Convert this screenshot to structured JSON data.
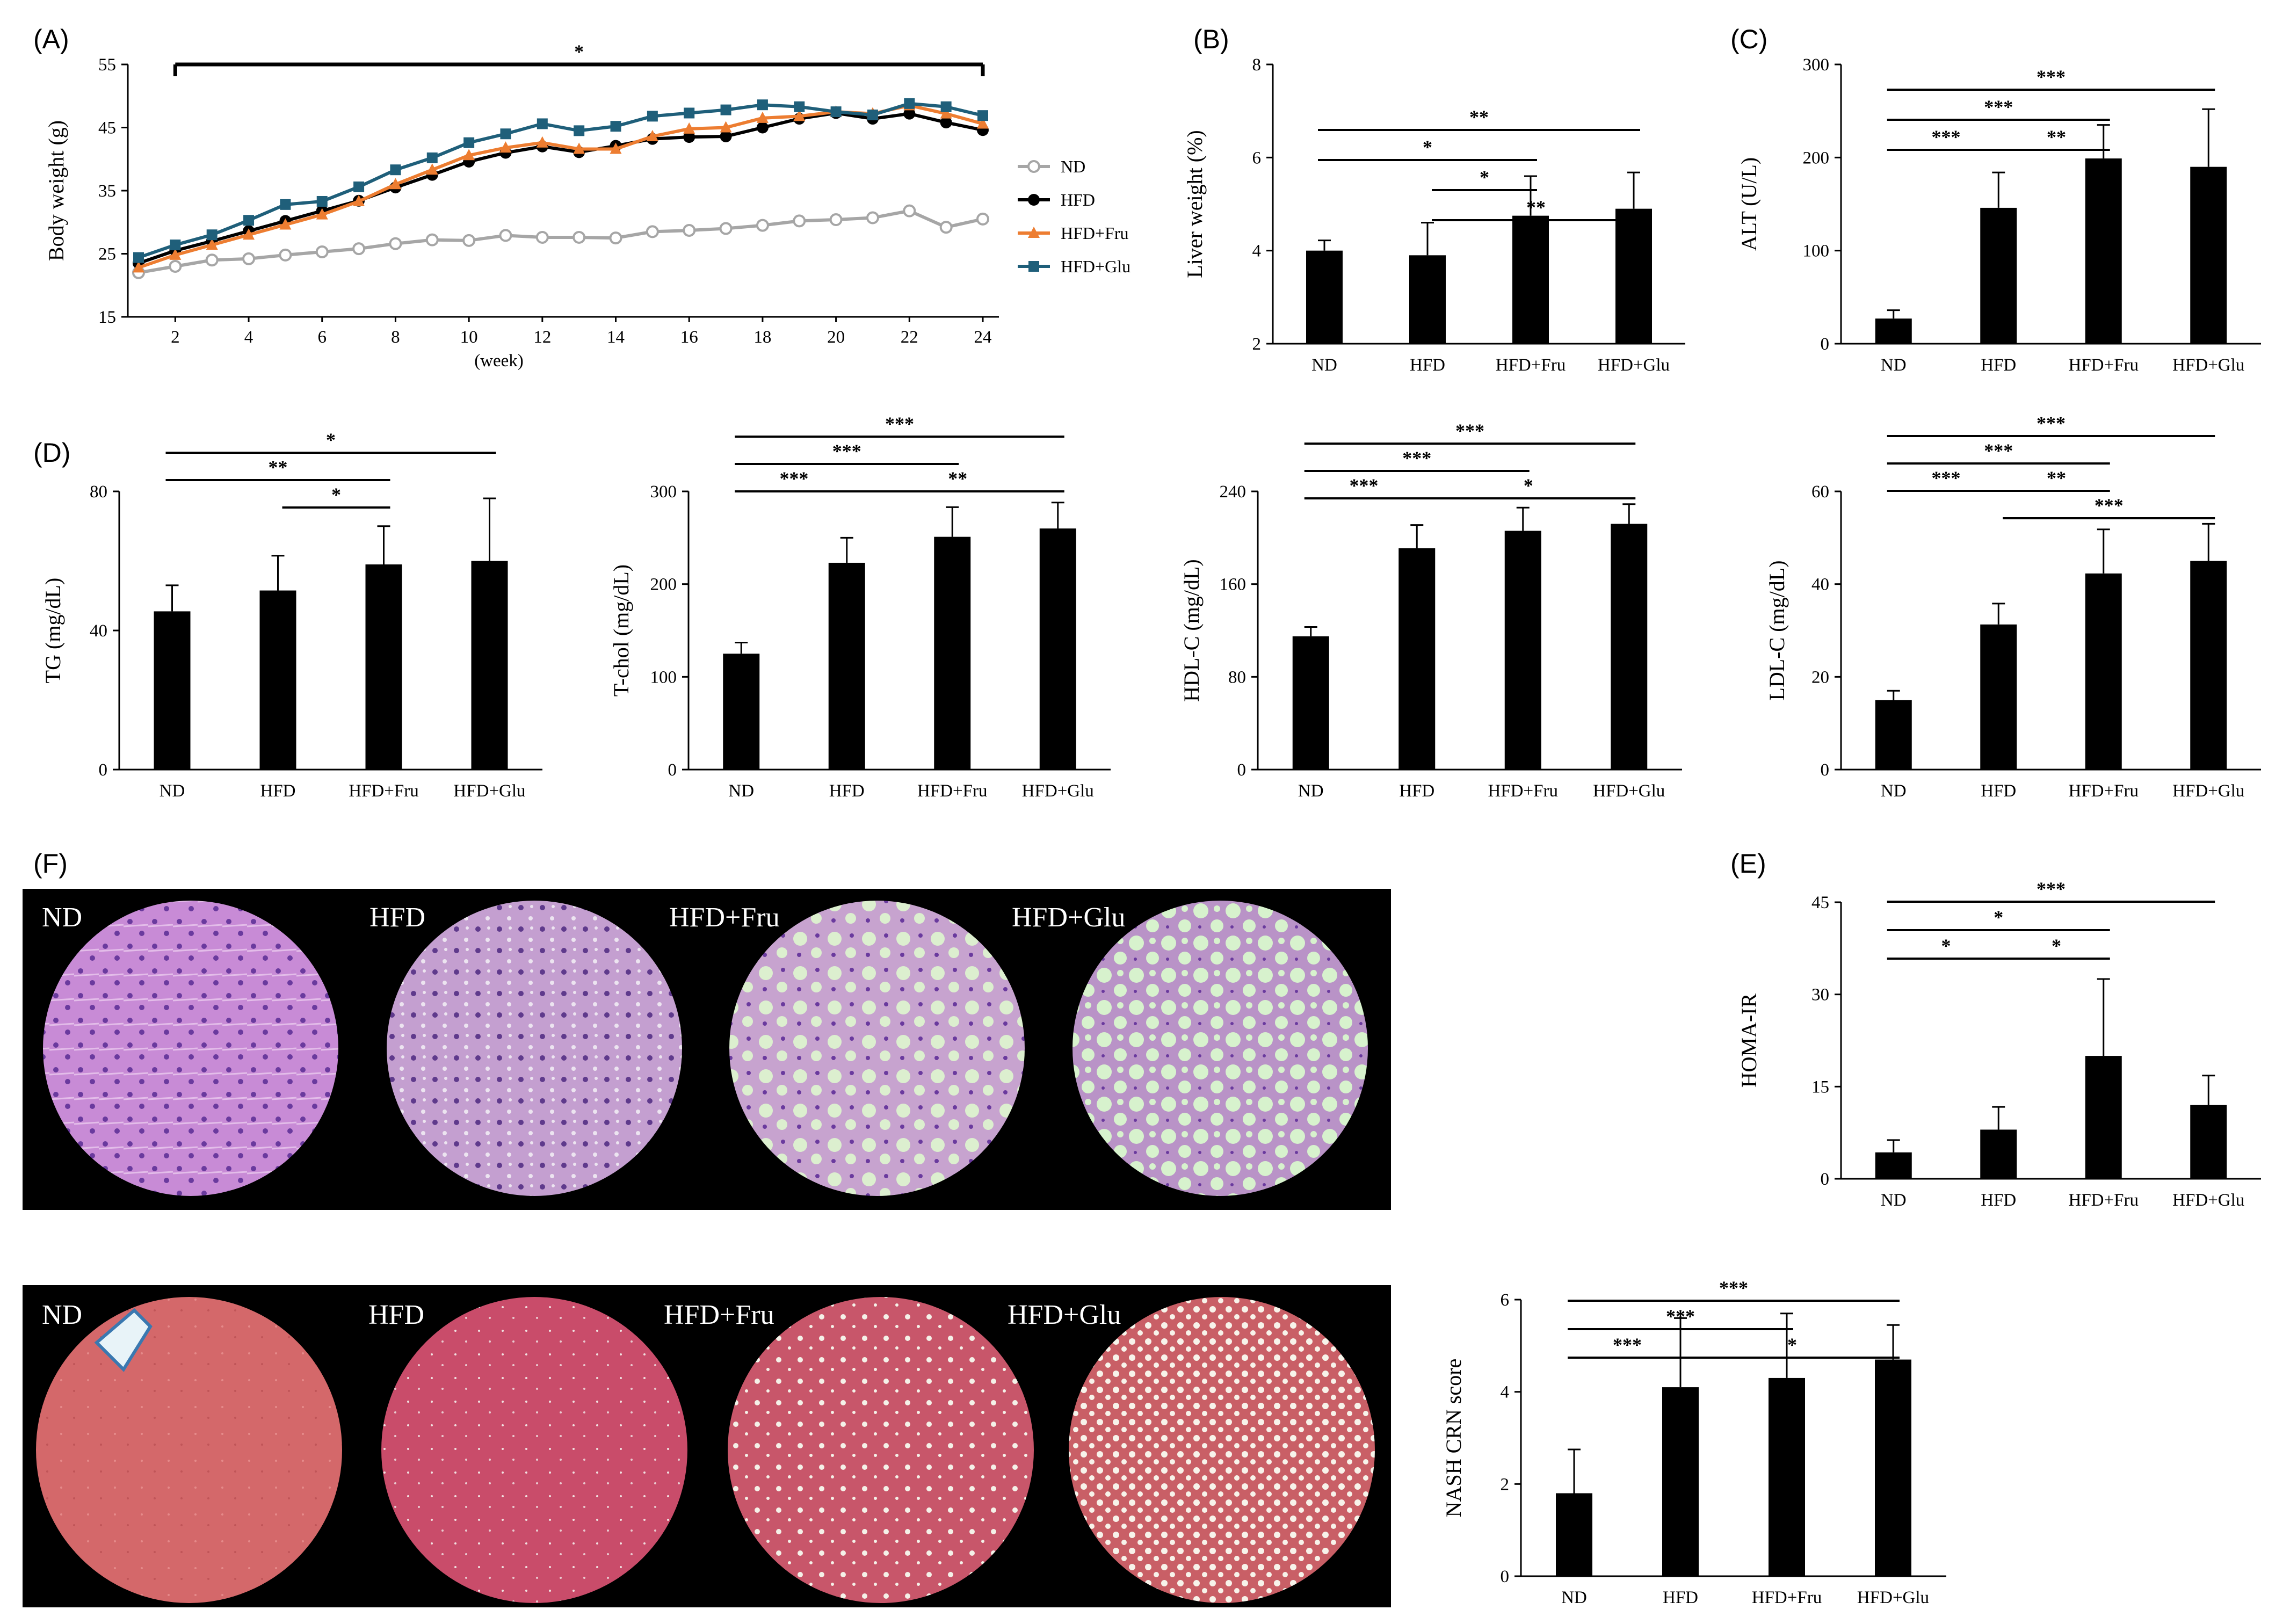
{
  "figure": {
    "labels": {
      "A": "(A)",
      "B": "(B)",
      "C": "(C)",
      "D": "(D)",
      "E": "(E)",
      "F": "(F)"
    }
  },
  "histology": {
    "he_labels": [
      "ND",
      "HFD",
      "HFD+Fru",
      "HFD+Glu"
    ],
    "trichrome_labels": [
      "ND",
      "HFD",
      "HFD+Fru",
      "HFD+Glu"
    ]
  },
  "chart_data": [
    {
      "id": "A",
      "type": "line",
      "title": "",
      "xlabel": "(week)",
      "ylabel": "Body weight (g)",
      "xlim": [
        1,
        24
      ],
      "ylim": [
        15,
        55
      ],
      "xticks": [
        2,
        4,
        6,
        8,
        10,
        12,
        14,
        16,
        18,
        20,
        22,
        24
      ],
      "yticks": [
        15,
        25,
        35,
        45,
        55
      ],
      "x": [
        1,
        2,
        3,
        4,
        5,
        6,
        7,
        8,
        9,
        10,
        11,
        12,
        13,
        14,
        15,
        16,
        17,
        18,
        19,
        20,
        21,
        22,
        23,
        24
      ],
      "legend": [
        "ND",
        "HFD",
        "HFD+Fru",
        "HFD+Glu"
      ],
      "sig_label": "*",
      "series": [
        {
          "name": "ND",
          "color": "#a6a6a6",
          "marker": "open-circle",
          "values": [
            22,
            23,
            24,
            24.2,
            24.8,
            25.3,
            25.8,
            26.6,
            27.2,
            27.1,
            27.9,
            27.6,
            27.6,
            27.5,
            28.5,
            28.7,
            29,
            29.5,
            30.2,
            30.4,
            30.7,
            31.8,
            29.2,
            30.5
          ]
        },
        {
          "name": "HFD",
          "color": "#000000",
          "marker": "circle",
          "values": [
            23.5,
            25.5,
            27,
            28.6,
            30.2,
            31.8,
            33.4,
            35.5,
            37.5,
            39.6,
            41,
            42,
            41.1,
            42.1,
            43.2,
            43.5,
            43.6,
            45,
            46.4,
            47.3,
            46.4,
            47.2,
            45.8,
            44.6
          ]
        },
        {
          "name": "HFD+Fru",
          "color": "#ed7d31",
          "marker": "triangle",
          "values": [
            22.8,
            24.8,
            26.4,
            28,
            29.6,
            31.2,
            33.3,
            36,
            38.3,
            40.6,
            41.8,
            42.6,
            41.6,
            41.6,
            43.6,
            44.8,
            45,
            46.5,
            46.8,
            47.5,
            47.2,
            48.5,
            47.2,
            45.6
          ]
        },
        {
          "name": "HFD+Glu",
          "color": "#1f5f7a",
          "marker": "square",
          "values": [
            24.4,
            26.4,
            28,
            30.3,
            32.8,
            33.3,
            35.6,
            38.3,
            40.2,
            42.6,
            44,
            45.6,
            44.5,
            45.2,
            46.8,
            47.3,
            47.8,
            48.6,
            48.3,
            47.5,
            47,
            48.8,
            48.3,
            46.9
          ]
        }
      ]
    },
    {
      "id": "B",
      "type": "bar",
      "ylabel": "Liver weight (%)",
      "categories": [
        "ND",
        "HFD",
        "HFD+Fru",
        "HFD+Glu"
      ],
      "values": [
        4.0,
        3.9,
        4.75,
        4.9
      ],
      "errors": [
        0.22,
        0.7,
        0.85,
        0.78
      ],
      "ylim": [
        2,
        8
      ],
      "yticks": [
        2,
        4,
        6,
        8
      ],
      "significance": [
        {
          "from": 0,
          "to": 3,
          "label": "**"
        },
        {
          "from": 0,
          "to": 2,
          "label": "*"
        },
        {
          "from": 1,
          "to": 2,
          "label": "*"
        },
        {
          "from": 1,
          "to": 3,
          "label": "**"
        }
      ]
    },
    {
      "id": "C",
      "type": "bar",
      "ylabel": "ALT (U/L)",
      "categories": [
        "ND",
        "HFD",
        "HFD+Fru",
        "HFD+Glu"
      ],
      "values": [
        27,
        146,
        199,
        190
      ],
      "errors": [
        9,
        38,
        36,
        62
      ],
      "ylim": [
        0,
        300
      ],
      "yticks": [
        0,
        100,
        200,
        300
      ],
      "significance": [
        {
          "from": 0,
          "to": 3,
          "label": "***"
        },
        {
          "from": 0,
          "to": 2,
          "label": "***"
        },
        {
          "from": 0,
          "to": 1,
          "label": "***"
        },
        {
          "from": 1,
          "to": 2,
          "label": "**"
        }
      ]
    },
    {
      "id": "D1",
      "type": "bar",
      "ylabel": "TG (mg/dL)",
      "categories": [
        "ND",
        "HFD",
        "HFD+Fru",
        "HFD+Glu"
      ],
      "values": [
        45.5,
        51.5,
        59,
        60
      ],
      "errors": [
        7.5,
        10,
        11,
        18
      ],
      "ylim": [
        0,
        80
      ],
      "yticks": [
        0,
        40,
        80
      ],
      "significance": [
        {
          "from": 0,
          "to": 3,
          "label": "*"
        },
        {
          "from": 0,
          "to": 2,
          "label": "**"
        },
        {
          "from": 1,
          "to": 2,
          "label": "*"
        }
      ]
    },
    {
      "id": "D2",
      "type": "bar",
      "ylabel": "T-chol (mg/dL)",
      "categories": [
        "ND",
        "HFD",
        "HFD+Fru",
        "HFD+Glu"
      ],
      "values": [
        125,
        223,
        251,
        260
      ],
      "errors": [
        12,
        27,
        32,
        28
      ],
      "ylim": [
        0,
        300
      ],
      "yticks": [
        0,
        100,
        200,
        300
      ],
      "significance": [
        {
          "from": 0,
          "to": 3,
          "label": "***"
        },
        {
          "from": 0,
          "to": 2,
          "label": "***"
        },
        {
          "from": 0,
          "to": 1,
          "label": "***"
        },
        {
          "from": 1,
          "to": 3,
          "label": "**"
        }
      ]
    },
    {
      "id": "D3",
      "type": "bar",
      "ylabel": "HDL-C (mg/dL)",
      "categories": [
        "ND",
        "HFD",
        "HFD+Fru",
        "HFD+Glu"
      ],
      "values": [
        115,
        191,
        206,
        212
      ],
      "errors": [
        8,
        20,
        20,
        17
      ],
      "ylim": [
        0,
        240
      ],
      "yticks": [
        0,
        80,
        160,
        240
      ],
      "significance": [
        {
          "from": 0,
          "to": 3,
          "label": "***"
        },
        {
          "from": 0,
          "to": 2,
          "label": "***"
        },
        {
          "from": 0,
          "to": 1,
          "label": "***"
        },
        {
          "from": 1,
          "to": 3,
          "label": "*"
        }
      ]
    },
    {
      "id": "D4",
      "type": "bar",
      "ylabel": "LDL-C (mg/dL)",
      "categories": [
        "ND",
        "HFD",
        "HFD+Fru",
        "HFD+Glu"
      ],
      "values": [
        15,
        31.3,
        42.3,
        45
      ],
      "errors": [
        2,
        4.5,
        9.5,
        8
      ],
      "ylim": [
        0,
        60
      ],
      "yticks": [
        0,
        20,
        40,
        60
      ],
      "significance": [
        {
          "from": 0,
          "to": 3,
          "label": "***"
        },
        {
          "from": 0,
          "to": 2,
          "label": "***"
        },
        {
          "from": 0,
          "to": 1,
          "label": "***"
        },
        {
          "from": 1,
          "to": 2,
          "label": "**"
        },
        {
          "from": 1,
          "to": 3,
          "label": "***"
        }
      ]
    },
    {
      "id": "E",
      "type": "bar",
      "ylabel": "HOMA-IR",
      "categories": [
        "ND",
        "HFD",
        "HFD+Fru",
        "HFD+Glu"
      ],
      "values": [
        4.3,
        8,
        20,
        12
      ],
      "errors": [
        2,
        3.7,
        12.5,
        4.8
      ],
      "ylim": [
        0,
        45
      ],
      "yticks": [
        0,
        15,
        30,
        45
      ],
      "significance": [
        {
          "from": 0,
          "to": 3,
          "label": "***"
        },
        {
          "from": 0,
          "to": 2,
          "label": "*"
        },
        {
          "from": 0,
          "to": 1,
          "label": "*"
        },
        {
          "from": 1,
          "to": 2,
          "label": "*"
        }
      ]
    },
    {
      "id": "NASH",
      "type": "bar",
      "ylabel": "NASH CRN score",
      "categories": [
        "ND",
        "HFD",
        "HFD+Fru",
        "HFD+Glu"
      ],
      "values": [
        1.8,
        4.1,
        4.3,
        4.7
      ],
      "errors": [
        0.95,
        1.5,
        1.4,
        0.75
      ],
      "ylim": [
        0,
        6
      ],
      "yticks": [
        0,
        2,
        4,
        6
      ],
      "significance": [
        {
          "from": 0,
          "to": 3,
          "label": "***"
        },
        {
          "from": 0,
          "to": 2,
          "label": "***"
        },
        {
          "from": 0,
          "to": 1,
          "label": "***"
        },
        {
          "from": 1,
          "to": 3,
          "label": "*"
        }
      ]
    }
  ]
}
